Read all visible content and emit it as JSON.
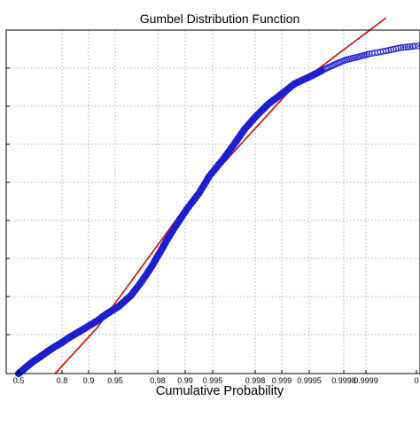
{
  "chart_data": {
    "type": "scatter",
    "title": "Gumbel Distribution Function",
    "xlabel": "Cumulative Probability",
    "ylabel": "",
    "x_scale": "gumbel-probability",
    "x_ticks": [
      "0.5",
      "0.8",
      "0.9",
      "0.95",
      "0.98",
      "0.99",
      "0.995",
      "0.998",
      "0.999",
      "0.9995",
      "0.9998",
      "0.9999",
      "0"
    ],
    "y_ticks_labeled": false,
    "grid": true,
    "legend": "none",
    "colors": {
      "points": "#1f1fd1",
      "fit": "#cc1f1f",
      "grid": "#9a9a9a"
    },
    "series": [
      {
        "marker": "circle",
        "points": [
          [
            0.5,
            0.0
          ],
          [
            0.56,
            0.4
          ],
          [
            0.61,
            0.75
          ],
          [
            0.66,
            1.05
          ],
          [
            0.7,
            1.35
          ],
          [
            0.74,
            1.65
          ],
          [
            0.78,
            1.95
          ],
          [
            0.81,
            2.25
          ],
          [
            0.84,
            2.55
          ],
          [
            0.87,
            2.9
          ],
          [
            0.9,
            3.35
          ],
          [
            0.92,
            3.8
          ],
          [
            0.94,
            4.3
          ],
          [
            0.955,
            5.0
          ],
          [
            0.965,
            5.9
          ],
          [
            0.972,
            6.8
          ],
          [
            0.977,
            7.7
          ],
          [
            0.981,
            8.6
          ],
          [
            0.985,
            9.6
          ],
          [
            0.988,
            10.5
          ],
          [
            0.991,
            11.5
          ],
          [
            0.993,
            12.6
          ],
          [
            0.995,
            13.7
          ],
          [
            0.9962,
            14.7
          ],
          [
            0.997,
            15.6
          ],
          [
            0.9977,
            16.4
          ],
          [
            0.9983,
            17.2
          ],
          [
            0.9988,
            17.9
          ],
          [
            0.9991,
            18.5
          ],
          [
            0.9994,
            19.0
          ],
          [
            0.99955,
            19.4
          ],
          [
            0.99965,
            19.7
          ],
          [
            0.99973,
            20.0
          ],
          [
            0.9998,
            20.2
          ],
          [
            0.99985,
            20.4
          ],
          [
            0.9999,
            20.6
          ],
          [
            0.99993,
            20.8
          ],
          [
            0.99995,
            20.9
          ],
          [
            0.99997,
            21.0
          ],
          [
            0.99998,
            21.1
          ]
        ]
      },
      {
        "marker": "line",
        "points": [
          [
            0.75,
            0.0
          ],
          [
            0.9,
            2.9
          ],
          [
            0.99,
            11.4
          ],
          [
            0.999,
            18.1
          ],
          [
            0.9999,
            22.7
          ]
        ]
      }
    ]
  }
}
